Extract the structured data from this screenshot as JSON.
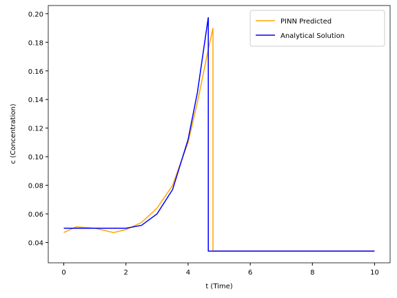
{
  "chart_data": {
    "type": "line",
    "x_label": "t (Time)",
    "y_label": "c (Concentration)",
    "x": [
      0,
      0.4,
      1,
      1.6,
      2,
      2.5,
      3,
      3.5,
      4,
      4.3,
      4.65,
      4.65,
      4.8,
      4.8,
      10
    ],
    "series": [
      {
        "name": "PINN Predicted",
        "color": "#ffa500",
        "values": [
          0.047,
          0.051,
          0.05,
          0.047,
          0.049,
          0.054,
          0.064,
          0.08,
          0.11,
          0.138,
          0.175,
          0.175,
          0.19,
          0.034,
          0.034
        ]
      },
      {
        "name": "Analytical Solution",
        "color": "#0000ff",
        "values": [
          0.05,
          0.05,
          0.05,
          0.05,
          0.05,
          0.052,
          0.06,
          0.077,
          0.112,
          0.145,
          0.1975,
          0.034,
          0.034,
          0.034,
          0.034
        ]
      }
    ],
    "xlim": [
      -0.5,
      10.5
    ],
    "ylim": [
      0.0258,
      0.2057
    ],
    "xticks": [
      0,
      2,
      4,
      6,
      8,
      10
    ],
    "yticks": [
      {
        "value": 0.04,
        "label": "0.04"
      },
      {
        "value": 0.06,
        "label": "0.06"
      },
      {
        "value": 0.08,
        "label": "0.08"
      },
      {
        "value": 0.1,
        "label": "0.10"
      },
      {
        "value": 0.12,
        "label": "0.12"
      },
      {
        "value": 0.14,
        "label": "0.14"
      },
      {
        "value": 0.16,
        "label": "0.16"
      },
      {
        "value": 0.18,
        "label": "0.18"
      },
      {
        "value": 0.2,
        "label": "0.20"
      }
    ],
    "legend": "upper right",
    "grid": false
  }
}
